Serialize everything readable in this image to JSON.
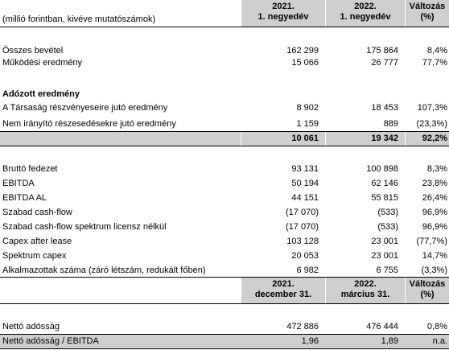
{
  "header": {
    "unit_note": "(millió forintban, kivéve mutatószámok)",
    "col_a": [
      "2021.",
      "1. negyedév"
    ],
    "col_b": [
      "2022.",
      "1. negyedév"
    ],
    "col_c": [
      "Változás",
      "(%)"
    ]
  },
  "rows_main": [
    {
      "label": "Összes bevétel",
      "a": "162 299",
      "b": "175 864",
      "c": "8,4%"
    },
    {
      "label": "Működési eredmény",
      "a": "15 066",
      "b": "26 777",
      "c": "77,7%"
    }
  ],
  "section_title": "Adózott eredmény",
  "rows_profit": [
    {
      "label": "A Társaság részvényeseire jutó eredmény",
      "a": "8 902",
      "b": "18 453",
      "c": "107,3%"
    },
    {
      "label": "Nem irányító részesedésekre jutó eredmény",
      "a": "1 159",
      "b": "889",
      "c": "(23,3%)"
    }
  ],
  "total_row": {
    "label": "",
    "a": "10 061",
    "b": "19 342",
    "c": "92,2%"
  },
  "rows_ebitda": [
    {
      "label": "Bruttó fedezet",
      "a": "93 131",
      "b": "100 898",
      "c": "8,3%"
    },
    {
      "label": "EBITDA",
      "a": "50 194",
      "b": "62 146",
      "c": "23,8%"
    },
    {
      "label": "EBITDA AL",
      "a": "44 151",
      "b": "55 815",
      "c": "26,4%"
    },
    {
      "label": "Szabad cash-flow",
      "a": "(17 070)",
      "b": "(533)",
      "c": "96,9%"
    },
    {
      "label": "Szabad cash-flow spektrum licensz nélkül",
      "a": "(17 070)",
      "b": "(533)",
      "c": "96,9%"
    },
    {
      "label": "Capex after lease",
      "a": "103 128",
      "b": "23 001",
      "c": "(77,7%)"
    },
    {
      "label": "Spektrum capex",
      "a": "20 053",
      "b": "23 001",
      "c": "14,7%"
    },
    {
      "label": "Alkalmazottak száma (záró létszám, redukált főben)",
      "a": "6 982",
      "b": "6 755",
      "c": "(3,3%)"
    }
  ],
  "header2": {
    "col_a": [
      "2021.",
      "december 31."
    ],
    "col_b": [
      "2022.",
      "március 31."
    ],
    "col_c": [
      "Változás",
      "(%)"
    ]
  },
  "rows_debt": [
    {
      "label": "Nettó adósság",
      "a": "472 886",
      "b": "476 444",
      "c": "0,8%"
    },
    {
      "label": "Nettó adósság / EBITDA",
      "a": "1,96",
      "b": "1,89",
      "c": "n.a."
    }
  ]
}
